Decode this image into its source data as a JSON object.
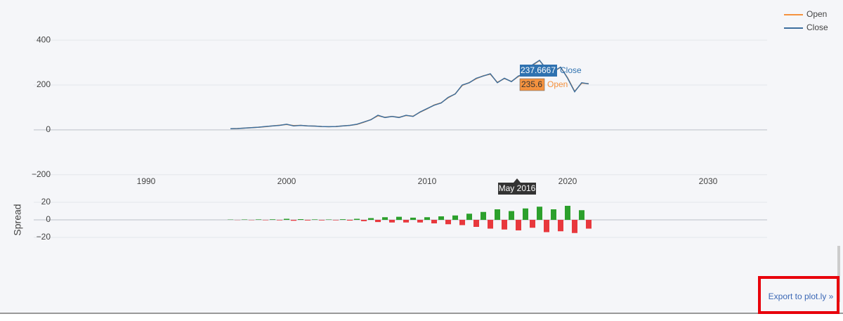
{
  "chart_data": [
    {
      "type": "line",
      "x": [
        1996,
        1996.5,
        1997,
        1997.5,
        1998,
        1998.5,
        1999,
        1999.5,
        2000,
        2000.5,
        2001,
        2001.5,
        2002,
        2002.5,
        2003,
        2003.5,
        2004,
        2004.5,
        2005,
        2005.5,
        2006,
        2006.5,
        2007,
        2007.5,
        2008,
        2008.5,
        2009,
        2009.5,
        2010,
        2010.5,
        2011,
        2011.5,
        2012,
        2012.5,
        2013,
        2013.5,
        2014,
        2014.5,
        2015,
        2015.5,
        2016,
        2016.5,
        2017,
        2017.5,
        2018,
        2018.5,
        2019,
        2019.5,
        2020,
        2020.5,
        2021,
        2021.5
      ],
      "series": [
        {
          "name": "Open",
          "color": "#f5923e",
          "values": [
            5,
            6,
            8,
            10,
            12,
            14,
            18,
            21,
            24,
            19,
            20,
            18,
            17,
            15,
            14,
            15,
            18,
            20,
            24,
            34,
            46,
            63,
            56,
            60,
            56,
            64,
            61,
            79,
            94,
            111,
            121,
            143,
            161,
            198,
            211,
            228,
            241,
            248,
            212,
            229,
            216,
            238,
            251,
            288,
            309,
            272,
            259,
            279,
            232,
            172,
            208,
            206
          ]
        },
        {
          "name": "Close",
          "color": "#3d6f9e",
          "values": [
            5,
            6,
            8,
            10,
            12,
            15,
            18,
            20,
            25,
            18,
            20,
            18,
            17,
            15,
            14,
            15,
            18,
            20,
            25,
            35,
            45,
            65,
            55,
            60,
            55,
            65,
            60,
            80,
            95,
            110,
            120,
            145,
            160,
            200,
            210,
            230,
            240,
            250,
            210,
            230,
            215,
            240,
            250,
            290,
            310,
            270,
            260,
            280,
            230,
            170,
            210,
            205
          ]
        }
      ],
      "xlim": [
        1982,
        2034.2
      ],
      "xticks": [
        1990,
        2000,
        2010,
        2020,
        2030
      ],
      "ylim": [
        -210,
        547.5
      ],
      "yticks": [
        {
          "value": -200,
          "label": "−200"
        },
        0,
        200,
        400
      ],
      "grid": true,
      "legend": "top-right",
      "hover": {
        "x_label": "May 2016",
        "close": 237.6667,
        "open": 235.6
      }
    },
    {
      "type": "bar",
      "ylabel": "Spread",
      "x": [
        1996,
        1996.5,
        1997,
        1997.5,
        1998,
        1998.5,
        1999,
        1999.5,
        2000,
        2000.5,
        2001,
        2001.5,
        2002,
        2002.5,
        2003,
        2003.5,
        2004,
        2004.5,
        2005,
        2005.5,
        2006,
        2006.5,
        2007,
        2007.5,
        2008,
        2008.5,
        2009,
        2009.5,
        2010,
        2010.5,
        2011,
        2011.5,
        2012,
        2012.5,
        2013,
        2013.5,
        2014,
        2014.5,
        2015,
        2015.5,
        2016,
        2016.5,
        2017,
        2017.5,
        2018,
        2018.5,
        2019,
        2019.5,
        2020,
        2020.5,
        2021,
        2021.5
      ],
      "values": [
        0.3,
        -0.2,
        0.4,
        -0.3,
        0.5,
        -0.4,
        0.6,
        -0.5,
        1.2,
        -1,
        0.8,
        -0.7,
        0.5,
        -0.6,
        0.4,
        -0.5,
        0.7,
        -0.8,
        1.2,
        -1.5,
        2,
        -2.5,
        3,
        -3,
        3.5,
        -3,
        2.5,
        -3,
        3,
        -4,
        4,
        -5,
        5,
        -6,
        7,
        -8,
        9,
        -10,
        12,
        -11,
        10,
        -12,
        13,
        -9,
        15,
        -14,
        12,
        -13,
        16,
        -15,
        11,
        -10
      ],
      "up_color": "#2ca02c",
      "down_color": "#e8383d",
      "xlim": [
        1982,
        2034.2
      ],
      "ylim": [
        -33.6,
        28.8
      ],
      "yticks": [
        {
          "value": -20,
          "label": "−20"
        },
        0,
        20
      ],
      "grid": true
    }
  ],
  "export_link": "Export to plot.ly »"
}
